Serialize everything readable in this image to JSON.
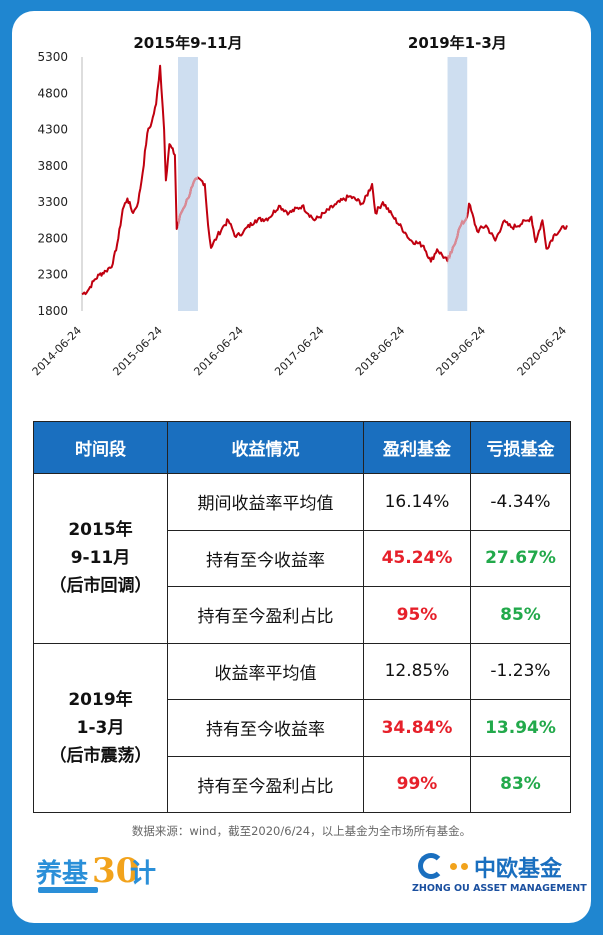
{
  "chart_data": {
    "type": "line",
    "x_tick_labels": [
      "2014-06-24",
      "2015-06-24",
      "2016-06-24",
      "2017-06-24",
      "2018-06-24",
      "2019-06-24",
      "2020-06-24"
    ],
    "y_tick_labels": [
      "1800",
      "2300",
      "2800",
      "3300",
      "3800",
      "4300",
      "4800",
      "5300"
    ],
    "ylim": [
      1800,
      5300
    ],
    "grid": false,
    "legend": "none",
    "highlight_periods": [
      {
        "label": "2015年9-11月",
        "start": "2015-09-01",
        "end": "2015-11-30"
      },
      {
        "label": "2019年1-3月",
        "start": "2019-01-01",
        "end": "2019-03-31"
      }
    ],
    "series": [
      {
        "points": [
          [
            "2014-06-24",
            2030
          ],
          [
            "2014-07-20",
            2080
          ],
          [
            "2014-08-15",
            2210
          ],
          [
            "2014-09-10",
            2300
          ],
          [
            "2014-10-10",
            2350
          ],
          [
            "2014-11-10",
            2450
          ],
          [
            "2014-12-05",
            2800
          ],
          [
            "2014-12-25",
            3200
          ],
          [
            "2015-01-15",
            3350
          ],
          [
            "2015-02-10",
            3150
          ],
          [
            "2015-03-05",
            3300
          ],
          [
            "2015-03-25",
            3700
          ],
          [
            "2015-04-15",
            4250
          ],
          [
            "2015-05-05",
            4400
          ],
          [
            "2015-05-25",
            4650
          ],
          [
            "2015-06-12",
            5180
          ],
          [
            "2015-06-30",
            4300
          ],
          [
            "2015-07-08",
            3600
          ],
          [
            "2015-07-24",
            4100
          ],
          [
            "2015-08-18",
            3950
          ],
          [
            "2015-08-26",
            2930
          ],
          [
            "2015-09-15",
            3150
          ],
          [
            "2015-10-15",
            3350
          ],
          [
            "2015-11-05",
            3520
          ],
          [
            "2015-11-25",
            3620
          ],
          [
            "2015-12-15",
            3600
          ],
          [
            "2015-12-31",
            3550
          ],
          [
            "2016-01-15",
            2980
          ],
          [
            "2016-01-28",
            2670
          ],
          [
            "2016-02-25",
            2830
          ],
          [
            "2016-03-20",
            2950
          ],
          [
            "2016-04-15",
            3050
          ],
          [
            "2016-05-20",
            2820
          ],
          [
            "2016-06-24",
            2900
          ],
          [
            "2016-08-15",
            3050
          ],
          [
            "2016-10-15",
            3080
          ],
          [
            "2016-11-30",
            3250
          ],
          [
            "2017-01-15",
            3150
          ],
          [
            "2017-03-15",
            3250
          ],
          [
            "2017-05-10",
            3050
          ],
          [
            "2017-06-24",
            3150
          ],
          [
            "2017-08-15",
            3270
          ],
          [
            "2017-10-15",
            3380
          ],
          [
            "2017-12-15",
            3280
          ],
          [
            "2018-01-25",
            3550
          ],
          [
            "2018-02-09",
            3150
          ],
          [
            "2018-03-15",
            3300
          ],
          [
            "2018-04-30",
            3100
          ],
          [
            "2018-06-24",
            2880
          ],
          [
            "2018-07-15",
            2780
          ],
          [
            "2018-09-15",
            2700
          ],
          [
            "2018-10-18",
            2480
          ],
          [
            "2018-11-15",
            2650
          ],
          [
            "2018-12-31",
            2490
          ],
          [
            "2019-01-20",
            2610
          ],
          [
            "2019-02-25",
            2950
          ],
          [
            "2019-03-31",
            3100
          ],
          [
            "2019-04-08",
            3280
          ],
          [
            "2019-05-15",
            2900
          ],
          [
            "2019-06-24",
            2980
          ],
          [
            "2019-08-05",
            2770
          ],
          [
            "2019-09-10",
            3030
          ],
          [
            "2019-10-20",
            2950
          ],
          [
            "2019-12-31",
            3050
          ],
          [
            "2020-01-15",
            3100
          ],
          [
            "2020-02-03",
            2750
          ],
          [
            "2020-03-05",
            3050
          ],
          [
            "2020-03-23",
            2660
          ],
          [
            "2020-04-30",
            2860
          ],
          [
            "2020-06-24",
            2980
          ]
        ]
      }
    ]
  },
  "table": {
    "headers": [
      "时间段",
      "收益情况",
      "盈利基金",
      "亏损基金"
    ],
    "groups": [
      {
        "period_line1": "2015年",
        "period_line2": "9-11月",
        "period_line3": "（后市回调）",
        "rows": [
          {
            "metric": "期间收益率平均值",
            "profit": "16.14%",
            "loss": "-4.34%"
          },
          {
            "metric": "持有至今收益率",
            "profit": "45.24%",
            "loss": "27.67%"
          },
          {
            "metric": "持有至今盈利占比",
            "profit": "95%",
            "loss": "85%"
          }
        ]
      },
      {
        "period_line1": "2019年",
        "period_line2": "1-3月",
        "period_line3": "（后市震荡）",
        "rows": [
          {
            "metric": "收益率平均值",
            "profit": "12.85%",
            "loss": "-1.23%"
          },
          {
            "metric": "持有至今收益率",
            "profit": "34.84%",
            "loss": "13.94%"
          },
          {
            "metric": "持有至今盈利占比",
            "profit": "99%",
            "loss": "83%"
          }
        ]
      }
    ]
  },
  "source_note": "数据来源：wind，截至2020/6/24，以上基金为全市场所有基金。",
  "logo_left": {
    "text1": "养基",
    "text2": "30",
    "text3": "计"
  },
  "logo_right": {
    "name": "中欧基金",
    "english": "ZHONG OU ASSET MANAGEMENT"
  },
  "colors": {
    "background": "#1f86d0",
    "line": "#c0000f",
    "highlight": "#c9daee",
    "header": "#1a6fbf",
    "positive": "#e6202a",
    "negative": "#22a94b"
  }
}
